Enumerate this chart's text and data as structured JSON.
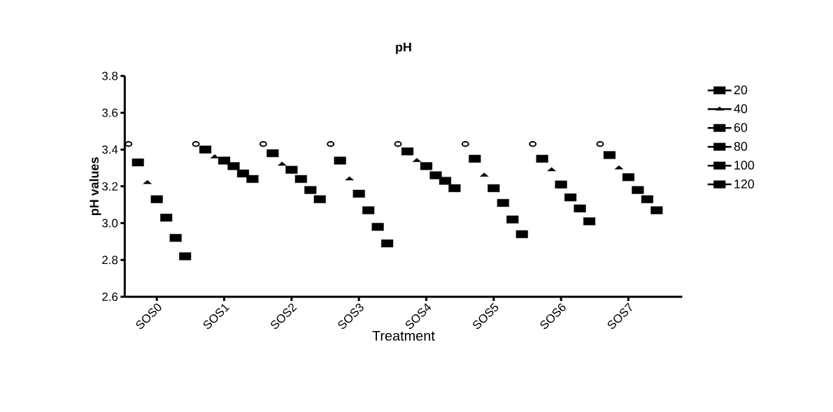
{
  "chart_data": {
    "type": "scatter",
    "title": "pH",
    "xlabel": "Treatment",
    "ylabel": "pH values",
    "categories": [
      "SOS0",
      "SOS1",
      "SOS2",
      "SOS3",
      "SOS4",
      "SOS5",
      "SOS6",
      "SOS7"
    ],
    "ylim": [
      2.6,
      3.8
    ],
    "yticks": [
      2.6,
      2.8,
      {
        "value": 3.0,
        "label": "3.0"
      },
      3.2,
      3.4,
      3.6,
      3.8
    ],
    "grid": false,
    "legend": "right",
    "series": [
      {
        "color": "#000000",
        "marker": "circle",
        "values": [
          3.43,
          3.43,
          3.43,
          3.43,
          3.43,
          3.43,
          3.43,
          3.43
        ]
      },
      {
        "name": "20",
        "color": "#000000",
        "marker": "square",
        "values": [
          3.33,
          3.4,
          3.38,
          3.34,
          3.39,
          3.35,
          3.35,
          3.37
        ]
      },
      {
        "name": "40",
        "color": "#000000",
        "marker": "triangle",
        "values": [
          3.22,
          3.36,
          3.32,
          3.24,
          3.34,
          3.26,
          3.29,
          3.3
        ]
      },
      {
        "name": "60",
        "color": "#000000",
        "marker": "square",
        "values": [
          3.13,
          3.34,
          3.29,
          3.16,
          3.31,
          3.19,
          3.21,
          3.25
        ]
      },
      {
        "name": "80",
        "color": "#000000",
        "marker": "square",
        "values": [
          3.03,
          3.31,
          3.24,
          3.07,
          3.26,
          3.11,
          3.14,
          3.18
        ]
      },
      {
        "name": "100",
        "color": "#000000",
        "marker": "square",
        "values": [
          2.92,
          3.27,
          3.18,
          2.98,
          3.23,
          3.02,
          3.08,
          3.13
        ]
      },
      {
        "name": "120",
        "color": "#000000",
        "marker": "square",
        "values": [
          2.82,
          3.24,
          3.13,
          2.89,
          3.19,
          2.94,
          3.01,
          3.07
        ]
      }
    ]
  }
}
